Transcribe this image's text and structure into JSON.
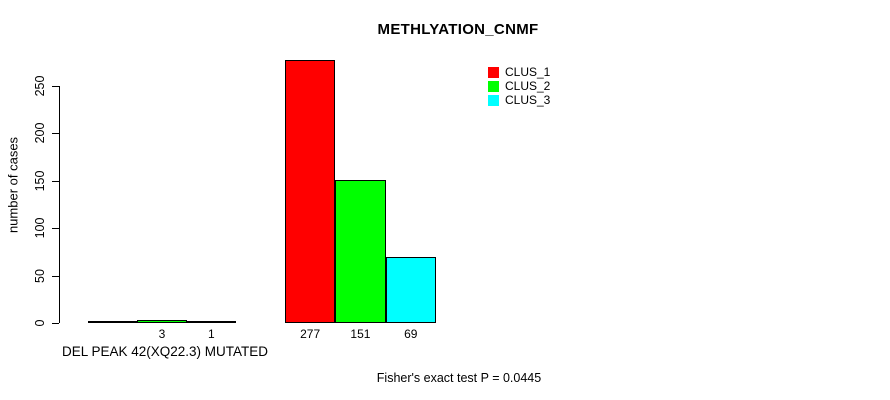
{
  "chart_data": {
    "type": "bar",
    "title": "METHLYATION_CNMF",
    "ylabel": "number of cases",
    "xlabel": "DEL PEAK 42(XQ22.3) MUTATED",
    "annotation": "Fisher's exact test P = 0.0445",
    "ylim": [
      0,
      280
    ],
    "yticks": [
      0,
      50,
      100,
      150,
      200,
      250
    ],
    "grid": false,
    "legend_position": "top-right",
    "bar_border_color": "#000000",
    "series": [
      {
        "name": "CLUS_1",
        "color": "#ff0000",
        "values": [
          0,
          277
        ],
        "bar_labels": [
          "",
          "277"
        ]
      },
      {
        "name": "CLUS_2",
        "color": "#00ff00",
        "values": [
          3,
          151
        ],
        "bar_labels": [
          "3",
          "151"
        ]
      },
      {
        "name": "CLUS_3",
        "color": "#00ffff",
        "values": [
          1,
          69
        ],
        "bar_labels": [
          "1",
          "69"
        ]
      }
    ]
  }
}
